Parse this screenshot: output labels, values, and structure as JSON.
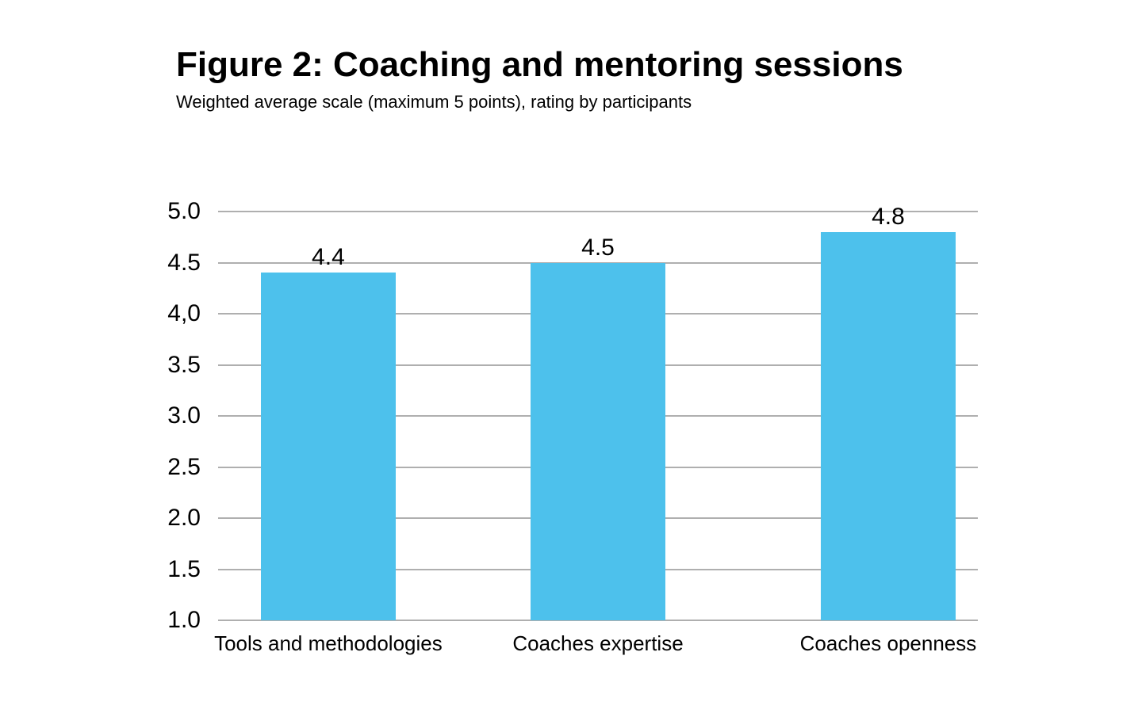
{
  "page": {
    "background_color": "#ffffff",
    "text_color": "#000000"
  },
  "chart_data": {
    "type": "bar",
    "title": "Figure 2: Coaching and mentoring sessions",
    "subtitle": "Weighted average scale (maximum 5 points), rating by participants",
    "categories": [
      "Tools and methodologies",
      "Coaches expertise",
      "Coaches openness"
    ],
    "values": [
      4.4,
      4.5,
      4.8
    ],
    "data_labels": [
      "4.4",
      "4.5",
      "4.8"
    ],
    "y_ticks": [
      {
        "label": "5.0",
        "value": 5.0
      },
      {
        "label": "4.5",
        "value": 4.5
      },
      {
        "label": "4,0",
        "value": 4.0
      },
      {
        "label": "3.5",
        "value": 3.5
      },
      {
        "label": "3.0",
        "value": 3.0
      },
      {
        "label": "2.5",
        "value": 2.5
      },
      {
        "label": "2.0",
        "value": 2.0
      },
      {
        "label": "1.5",
        "value": 1.5
      },
      {
        "label": "1.0",
        "value": 1.0
      }
    ],
    "ylim": [
      1.0,
      5.0
    ],
    "xlabel": "",
    "ylabel": "",
    "grid": true,
    "legend": "none",
    "bar_color": "#4DC1EC",
    "gridline_color": "#AFAFAF",
    "layout": {
      "bar_centers_frac": [
        0.145,
        0.5,
        0.882
      ],
      "bar_width_frac": 0.1775
    }
  }
}
